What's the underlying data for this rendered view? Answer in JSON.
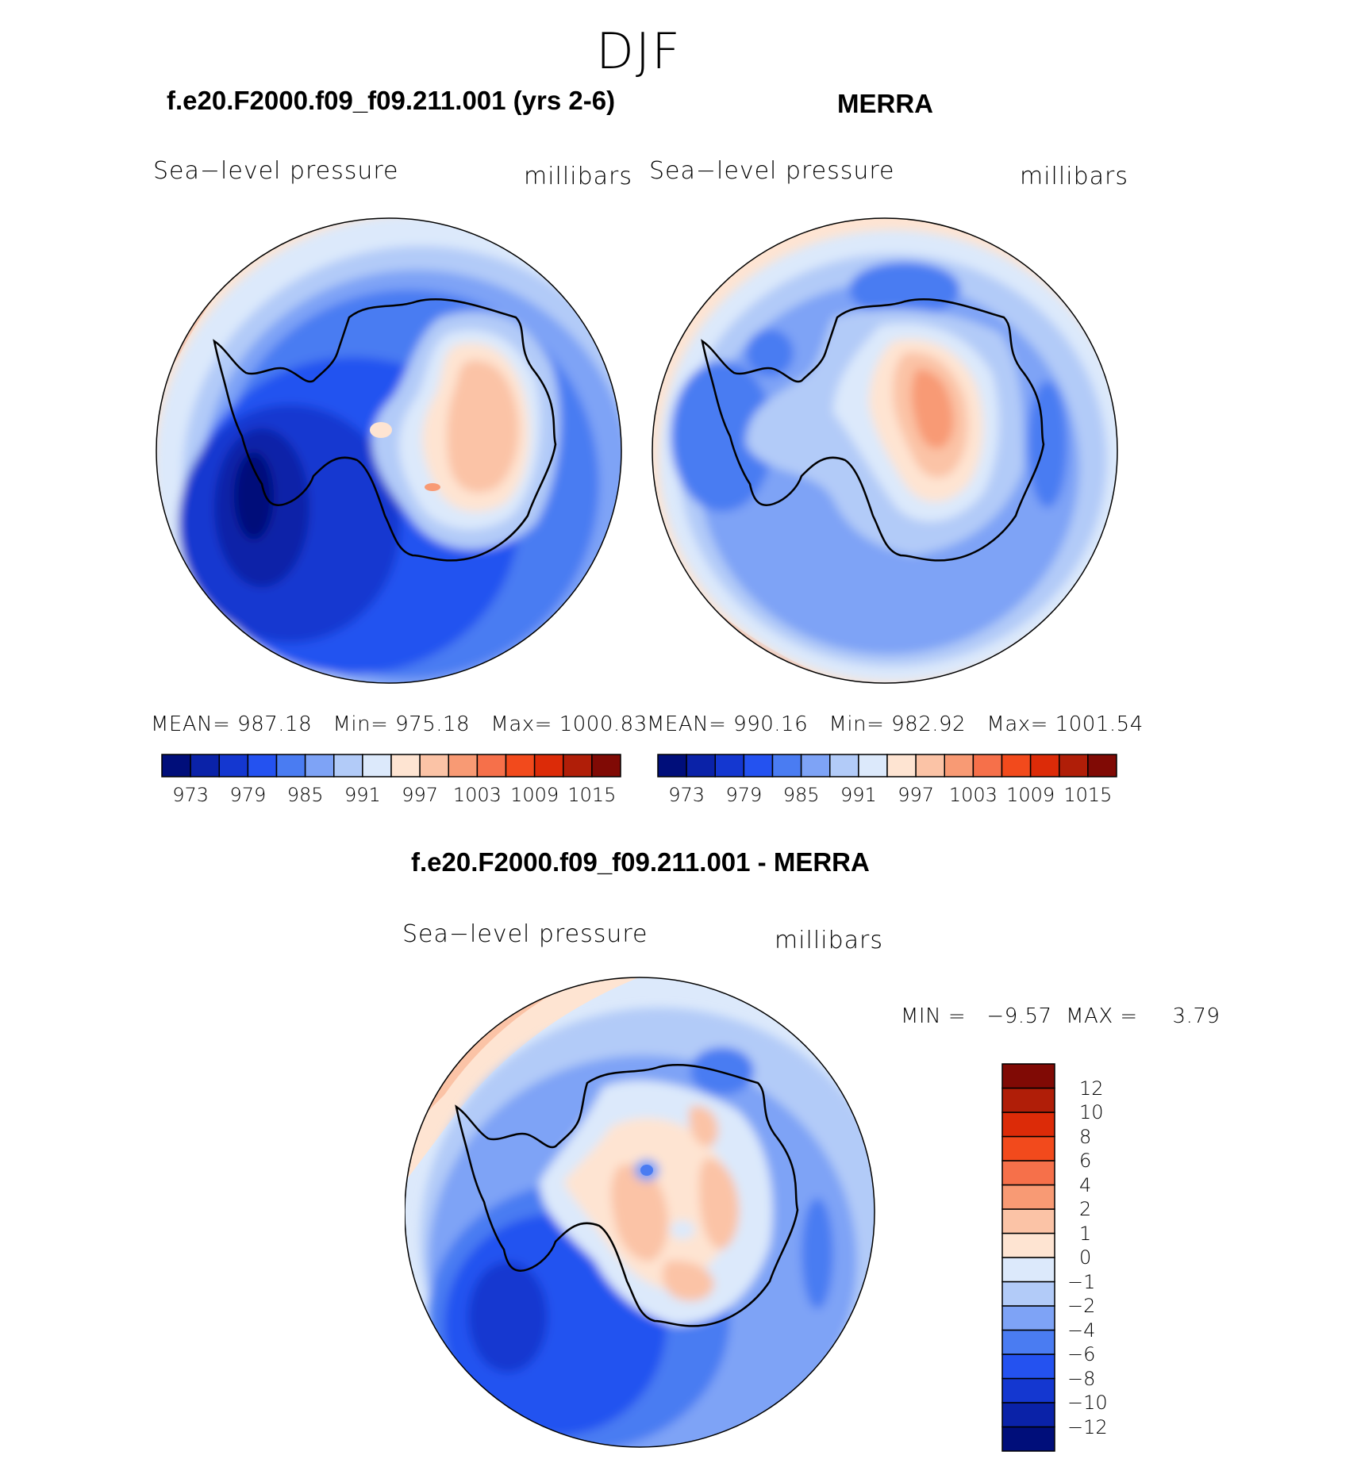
{
  "season": "DJF",
  "panels": {
    "model": {
      "title": "f.e20.F2000.f09_f09.211.001 (yrs 2-6)",
      "variable": "Sea−level pressure",
      "units": "millibars",
      "mean_label": "MEAN=",
      "mean": "987.18",
      "min_label": "Min=",
      "min": "975.18",
      "max_label": "Max=",
      "max": "1000.83"
    },
    "obs": {
      "title": "MERRA",
      "variable": "Sea−level pressure",
      "units": "millibars",
      "mean_label": "MEAN=",
      "mean": "990.16",
      "min_label": "Min=",
      "min": "982.92",
      "max_label": "Max=",
      "max": "1001.54"
    },
    "diff": {
      "title": "f.e20.F2000.f09_f09.211.001 - MERRA",
      "variable": "Sea−level pressure",
      "units": "millibars",
      "min_label": "MIN =",
      "min": "−9.57",
      "max_label": "MAX =",
      "max": "3.79"
    }
  },
  "colorbar_abs": {
    "colors": [
      "#000e7a",
      "#0a22a8",
      "#1437d0",
      "#2452f0",
      "#4a7cf2",
      "#7ea3f6",
      "#b2cbf8",
      "#dce9fb",
      "#fee4d2",
      "#fbc3a6",
      "#f89a74",
      "#f6704a",
      "#f24a1c",
      "#dc2b08",
      "#b01e08",
      "#800a05"
    ],
    "labels": [
      "973",
      "979",
      "985",
      "991",
      "997",
      "1003",
      "1009",
      "1015"
    ]
  },
  "colorbar_diff": {
    "colors": [
      "#000e7a",
      "#0a22a8",
      "#1437d0",
      "#2452f0",
      "#4a7cf2",
      "#7ea3f6",
      "#b2cbf8",
      "#dce9fb",
      "#fee4d2",
      "#fbc3a6",
      "#f89a74",
      "#f6704a",
      "#f24a1c",
      "#dc2b08",
      "#b01e08",
      "#800a05"
    ],
    "labels": [
      "12",
      "10",
      "8",
      "6",
      "4",
      "2",
      "1",
      "0",
      "−1",
      "−2",
      "−4",
      "−6",
      "−8",
      "−10",
      "−12"
    ]
  }
}
